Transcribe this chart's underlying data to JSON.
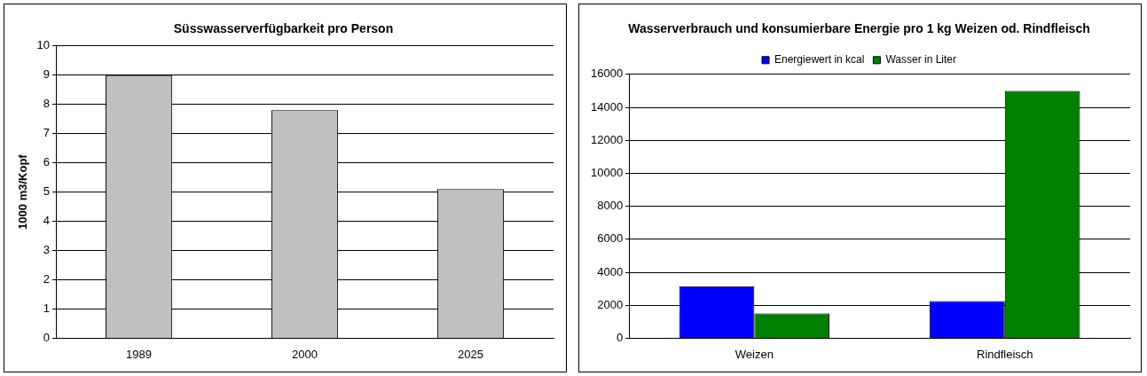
{
  "chart_data": [
    {
      "type": "bar",
      "title": "Süsswasserverfügbarkeit pro Person",
      "ylabel": "1000 m3/Kopf",
      "categories": [
        "1989",
        "2000",
        "2025"
      ],
      "values": [
        9,
        7.8,
        5.1
      ],
      "color": "#c0c0c0",
      "ylim": [
        0,
        10
      ],
      "yticks": [
        0,
        1,
        2,
        3,
        4,
        5,
        6,
        7,
        8,
        9,
        10
      ],
      "grid": "y",
      "legend": false
    },
    {
      "type": "bar",
      "title": "Wasserverbrauch und konsumierbare Energie pro 1 kg Weizen od. Rindfleisch",
      "categories": [
        "Weizen",
        "Rindfleisch"
      ],
      "series": [
        {
          "name": "Energiewert in kcal",
          "color": "#0000ff",
          "values": [
            3150,
            2250
          ]
        },
        {
          "name": "Wasser in Liter",
          "color": "#008000",
          "values": [
            1500,
            15000
          ]
        }
      ],
      "ylim": [
        0,
        16000
      ],
      "yticks": [
        0,
        2000,
        4000,
        6000,
        8000,
        10000,
        12000,
        14000,
        16000
      ],
      "grid": "y",
      "legend": "top"
    }
  ]
}
